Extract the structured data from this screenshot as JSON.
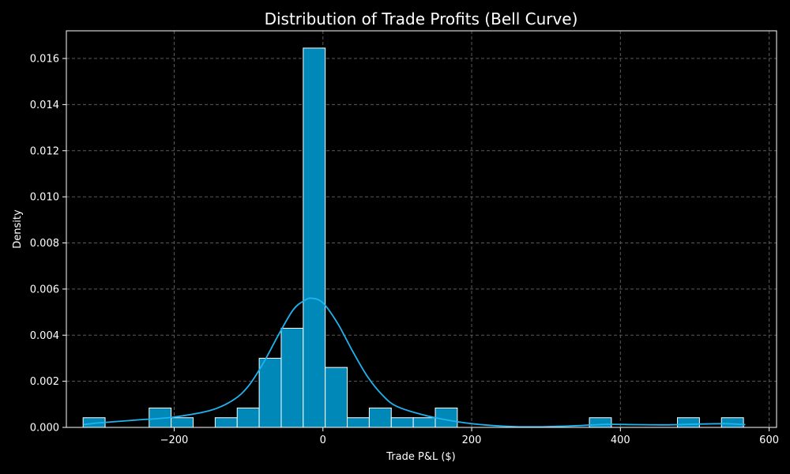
{
  "chart_data": {
    "type": "bar",
    "title": "Distribution of Trade Profits (Bell Curve)",
    "xlabel": "Trade P&L ($)",
    "ylabel": "Density",
    "xlim": [
      -345,
      610
    ],
    "ylim": [
      0,
      0.0172
    ],
    "xticks": [
      -200,
      0,
      200,
      400,
      600
    ],
    "xtick_labels": [
      "−200",
      "0",
      "200",
      "400",
      "600"
    ],
    "yticks": [
      0,
      0.002,
      0.004,
      0.006,
      0.008,
      0.01,
      0.012,
      0.014,
      0.016
    ],
    "ytick_labels": [
      "0.000",
      "0.002",
      "0.004",
      "0.006",
      "0.008",
      "0.010",
      "0.012",
      "0.014",
      "0.016"
    ],
    "grid": true,
    "bin_width": 29.6,
    "bins": [
      {
        "start": -322.5,
        "density": 0.00042
      },
      {
        "start": -292.9,
        "density": 0
      },
      {
        "start": -263.3,
        "density": 0
      },
      {
        "start": -233.7,
        "density": 0.00084
      },
      {
        "start": -204.1,
        "density": 0.00042
      },
      {
        "start": -174.5,
        "density": 0
      },
      {
        "start": -144.9,
        "density": 0.00042
      },
      {
        "start": -115.3,
        "density": 0.00084
      },
      {
        "start": -85.7,
        "density": 0.003
      },
      {
        "start": -56.1,
        "density": 0.0043
      },
      {
        "start": -26.5,
        "density": 0.01645
      },
      {
        "start": 3.1,
        "density": 0.0026
      },
      {
        "start": 32.7,
        "density": 0.00042
      },
      {
        "start": 62.3,
        "density": 0.00084
      },
      {
        "start": 91.9,
        "density": 0.00042
      },
      {
        "start": 121.5,
        "density": 0.00042
      },
      {
        "start": 151.1,
        "density": 0.00084
      },
      {
        "start": 180.7,
        "density": 0
      },
      {
        "start": 210.3,
        "density": 0
      },
      {
        "start": 239.9,
        "density": 0
      },
      {
        "start": 269.5,
        "density": 0
      },
      {
        "start": 299.1,
        "density": 0
      },
      {
        "start": 328.7,
        "density": 0
      },
      {
        "start": 358.3,
        "density": 0.00042
      },
      {
        "start": 387.9,
        "density": 0
      },
      {
        "start": 417.5,
        "density": 0
      },
      {
        "start": 447.1,
        "density": 0
      },
      {
        "start": 476.7,
        "density": 0.00042
      },
      {
        "start": 506.3,
        "density": 0
      },
      {
        "start": 535.9,
        "density": 0.00042
      }
    ],
    "kde": {
      "x": [
        -322,
        -300,
        -250,
        -200,
        -150,
        -120,
        -100,
        -80,
        -60,
        -40,
        -25,
        -15,
        0,
        20,
        40,
        60,
        80,
        100,
        140,
        180,
        220,
        260,
        300,
        340,
        380,
        420,
        460,
        500,
        540,
        568
      ],
      "y": [
        0.00012,
        0.0002,
        0.00032,
        0.00045,
        0.00075,
        0.0012,
        0.0018,
        0.0028,
        0.004,
        0.0051,
        0.0055,
        0.0056,
        0.0054,
        0.0045,
        0.0033,
        0.0022,
        0.0014,
        0.0009,
        0.0005,
        0.00025,
        0.0001,
        3e-05,
        3e-05,
        7e-05,
        0.00013,
        0.00012,
        0.00011,
        0.00014,
        0.00016,
        0.00012
      ]
    },
    "colors": {
      "background": "#000000",
      "bar_fill": "#0088b8",
      "bar_edge": "#ffffff",
      "kde_line": "#1fb4f0",
      "grid": "#5a5a5a",
      "axes": "#ffffff"
    }
  }
}
